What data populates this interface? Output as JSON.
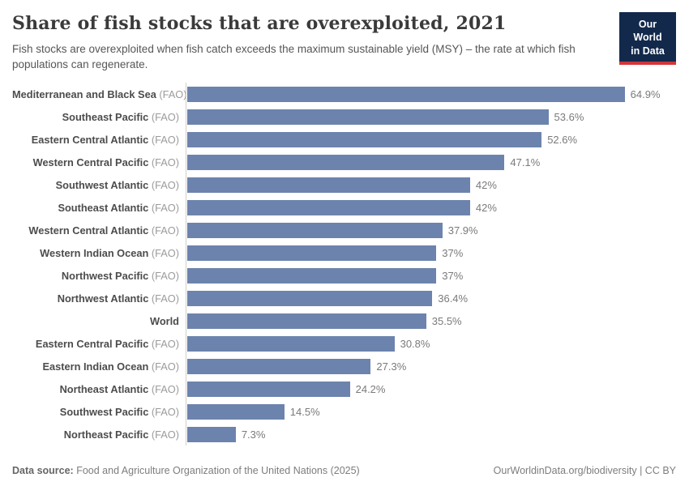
{
  "header": {
    "title": "Share of fish stocks that are overexploited, 2021",
    "subtitle": "Fish stocks are overexploited when fish catch exceeds the maximum sustainable yield (MSY) – the rate at which fish populations can regenerate.",
    "logo": {
      "line1": "Our World",
      "line2": "in Data"
    }
  },
  "chart_data": {
    "type": "bar",
    "orientation": "horizontal",
    "title": "Share of fish stocks that are overexploited, 2021",
    "unit": "%",
    "xlim": [
      0,
      72.5
    ],
    "grid": false,
    "bar_color": "#6c83ad",
    "rows": [
      {
        "label": "Mediterranean and Black Sea",
        "source": "(FAO)",
        "value": 64.9,
        "display": "64.9%"
      },
      {
        "label": "Southeast Pacific",
        "source": "(FAO)",
        "value": 53.6,
        "display": "53.6%"
      },
      {
        "label": "Eastern Central Atlantic",
        "source": "(FAO)",
        "value": 52.6,
        "display": "52.6%"
      },
      {
        "label": "Western Central Pacific",
        "source": "(FAO)",
        "value": 47.1,
        "display": "47.1%"
      },
      {
        "label": "Southwest Atlantic",
        "source": "(FAO)",
        "value": 42,
        "display": "42%"
      },
      {
        "label": "Southeast Atlantic",
        "source": "(FAO)",
        "value": 42,
        "display": "42%"
      },
      {
        "label": "Western Central Atlantic",
        "source": "(FAO)",
        "value": 37.9,
        "display": "37.9%"
      },
      {
        "label": "Western Indian Ocean",
        "source": "(FAO)",
        "value": 37,
        "display": "37%"
      },
      {
        "label": "Northwest Pacific",
        "source": "(FAO)",
        "value": 37,
        "display": "37%"
      },
      {
        "label": "Northwest Atlantic",
        "source": "(FAO)",
        "value": 36.4,
        "display": "36.4%"
      },
      {
        "label": "World",
        "source": "",
        "value": 35.5,
        "display": "35.5%"
      },
      {
        "label": "Eastern Central Pacific",
        "source": "(FAO)",
        "value": 30.8,
        "display": "30.8%"
      },
      {
        "label": "Eastern Indian Ocean",
        "source": "(FAO)",
        "value": 27.3,
        "display": "27.3%"
      },
      {
        "label": "Northeast Atlantic",
        "source": "(FAO)",
        "value": 24.2,
        "display": "24.2%"
      },
      {
        "label": "Southwest Pacific",
        "source": "(FAO)",
        "value": 14.5,
        "display": "14.5%"
      },
      {
        "label": "Northeast Pacific",
        "source": "(FAO)",
        "value": 7.3,
        "display": "7.3%"
      }
    ]
  },
  "footer": {
    "source_label": "Data source:",
    "source_text": " Food and Agriculture Organization of the United Nations (2025)",
    "credit": "OurWorldinData.org/biodiversity | CC BY"
  },
  "colors": {
    "bar": "#6c83ad",
    "axis_line": "#cfcfcf",
    "title_text": "#3a3a3a",
    "logo_bg": "#12294b",
    "logo_stripe": "#d1353c"
  }
}
